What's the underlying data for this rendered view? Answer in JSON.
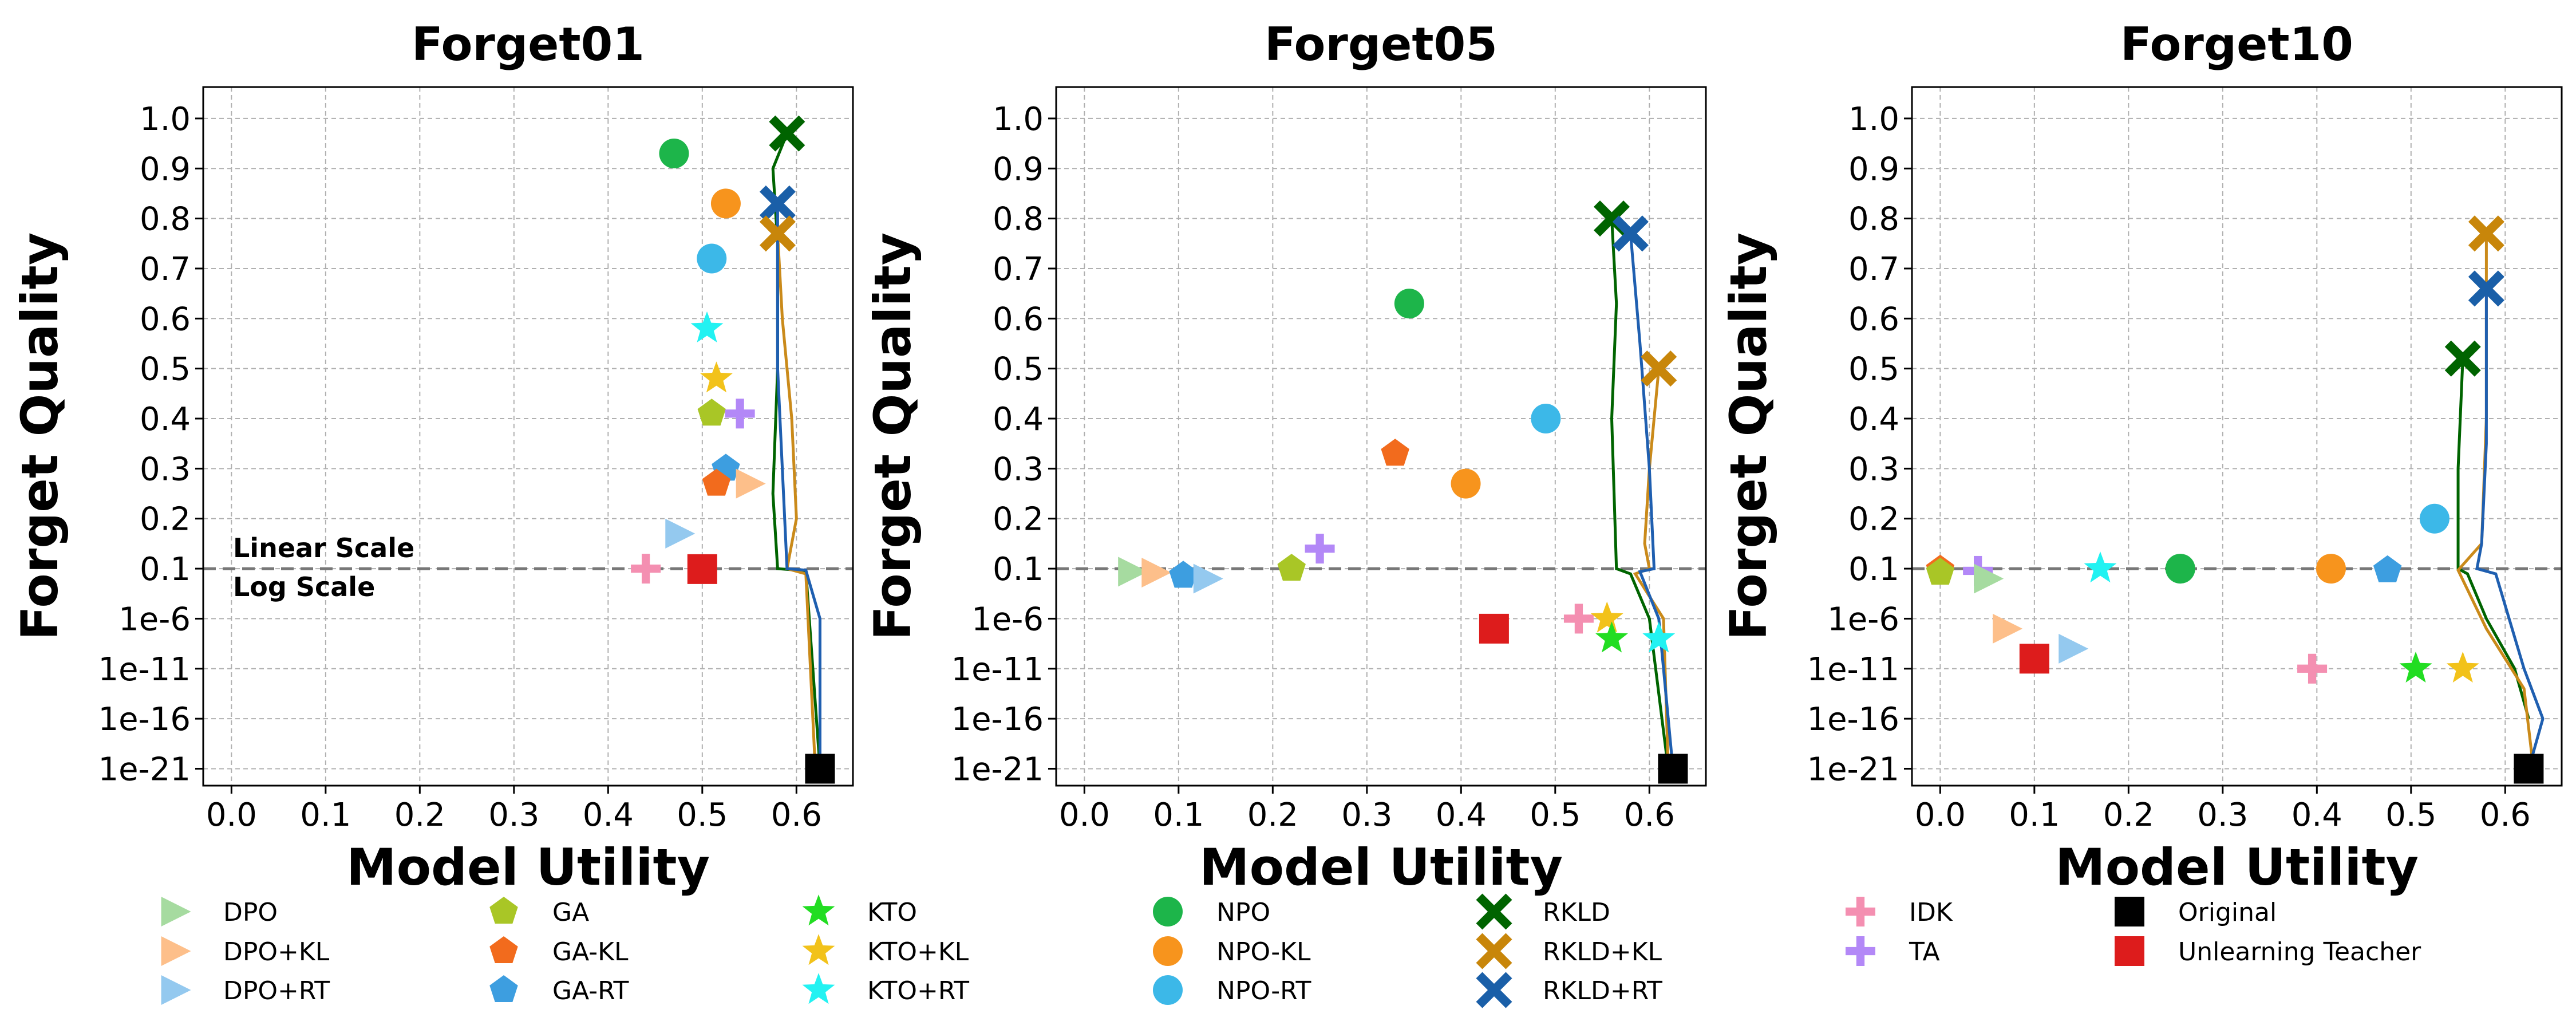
{
  "chart_data": [
    {
      "type": "scatter",
      "title": "Forget01",
      "xlabel": "Model Utility",
      "ylabel": "Forget Quality",
      "xlim": [
        -0.03,
        0.66
      ],
      "xticks": [
        "0.0",
        "0.1",
        "0.2",
        "0.3",
        "0.4",
        "0.5",
        "0.6"
      ],
      "yticks": [
        "1.0",
        "0.9",
        "0.8",
        "0.7",
        "0.6",
        "0.5",
        "0.4",
        "0.3",
        "0.2",
        "0.1",
        "1e-6",
        "1e-11",
        "1e-16",
        "1e-21"
      ],
      "y_scale": "linear above 0.1, log below 0.1",
      "scale_notes": {
        "upper": "Linear Scale",
        "lower": "Log Scale"
      },
      "grid": true,
      "points": [
        {
          "method": "NPO",
          "x": 0.47,
          "y": "0.93"
        },
        {
          "method": "NPO-KL",
          "x": 0.525,
          "y": "0.83"
        },
        {
          "method": "NPO-RT",
          "x": 0.51,
          "y": "0.72"
        },
        {
          "method": "KTO+RT",
          "x": 0.505,
          "y": "0.58"
        },
        {
          "method": "KTO+KL",
          "x": 0.515,
          "y": "0.48"
        },
        {
          "method": "GA",
          "x": 0.51,
          "y": "0.41"
        },
        {
          "method": "TA",
          "x": 0.54,
          "y": "0.41"
        },
        {
          "method": "GA-RT",
          "x": 0.525,
          "y": "0.30"
        },
        {
          "method": "GA-KL",
          "x": 0.515,
          "y": "0.27"
        },
        {
          "method": "DPO+KL",
          "x": 0.55,
          "y": "0.27"
        },
        {
          "method": "DPO+RT",
          "x": 0.475,
          "y": "0.17"
        },
        {
          "method": "IDK",
          "x": 0.44,
          "y": "0.10"
        },
        {
          "method": "Unlearning Teacher",
          "x": 0.5,
          "y": "0.09"
        },
        {
          "method": "RKLD",
          "x": 0.59,
          "y": "0.97"
        },
        {
          "method": "RKLD+RT",
          "x": 0.58,
          "y": "0.83"
        },
        {
          "method": "RKLD+KL",
          "x": 0.58,
          "y": "0.77"
        },
        {
          "method": "Original",
          "x": 0.625,
          "y": "1e-21"
        }
      ],
      "curves": [
        {
          "color": "#006400",
          "points": [
            [
              0.59,
              "0.97"
            ],
            [
              0.575,
              "0.90"
            ],
            [
              0.58,
              "0.75"
            ],
            [
              0.58,
              "0.50"
            ],
            [
              0.575,
              "0.25"
            ],
            [
              0.58,
              "0.10"
            ],
            [
              0.61,
              "0.06"
            ],
            [
              0.625,
              "1e-21"
            ]
          ]
        },
        {
          "color": "#ca8a1a",
          "points": [
            [
              0.58,
              "0.77"
            ],
            [
              0.585,
              "0.60"
            ],
            [
              0.595,
              "0.40"
            ],
            [
              0.6,
              "0.20"
            ],
            [
              0.59,
              "0.10"
            ],
            [
              0.61,
              "0.03"
            ],
            [
              0.62,
              "1e-21"
            ]
          ]
        },
        {
          "color": "#1f5fb0",
          "points": [
            [
              0.58,
              "0.83"
            ],
            [
              0.58,
              "0.50"
            ],
            [
              0.585,
              "0.30"
            ],
            [
              0.59,
              "0.10"
            ],
            [
              0.61,
              "0.07"
            ],
            [
              0.625,
              "1e-6"
            ],
            [
              0.625,
              "1e-21"
            ]
          ]
        }
      ]
    },
    {
      "type": "scatter",
      "title": "Forget05",
      "xlabel": "Model Utility",
      "ylabel": "Forget Quality",
      "xlim": [
        -0.03,
        0.66
      ],
      "xticks": [
        "0.0",
        "0.1",
        "0.2",
        "0.3",
        "0.4",
        "0.5",
        "0.6"
      ],
      "yticks": [
        "1.0",
        "0.9",
        "0.8",
        "0.7",
        "0.6",
        "0.5",
        "0.4",
        "0.3",
        "0.2",
        "0.1",
        "1e-6",
        "1e-11",
        "1e-16",
        "1e-21"
      ],
      "y_scale": "linear above 0.1, log below 0.1",
      "grid": true,
      "points": [
        {
          "method": "NPO",
          "x": 0.345,
          "y": "0.63"
        },
        {
          "method": "GA-KL",
          "x": 0.33,
          "y": "0.33"
        },
        {
          "method": "NPO-KL",
          "x": 0.405,
          "y": "0.27"
        },
        {
          "method": "NPO-RT",
          "x": 0.49,
          "y": "0.40"
        },
        {
          "method": "TA",
          "x": 0.25,
          "y": "0.14"
        },
        {
          "method": "GA",
          "x": 0.22,
          "y": "0.10"
        },
        {
          "method": "DPO",
          "x": 0.05,
          "y": "0.05"
        },
        {
          "method": "DPO+KL",
          "x": 0.075,
          "y": "0.04"
        },
        {
          "method": "GA-RT",
          "x": 0.105,
          "y": "0.02"
        },
        {
          "method": "DPO+RT",
          "x": 0.13,
          "y": "0.01"
        },
        {
          "method": "Unlearning Teacher",
          "x": 0.435,
          "y": "1e-7"
        },
        {
          "method": "IDK",
          "x": 0.525,
          "y": "1e-6"
        },
        {
          "method": "KTO+KL",
          "x": 0.555,
          "y": "1e-6"
        },
        {
          "method": "KTO",
          "x": 0.56,
          "y": "1e-8"
        },
        {
          "method": "KTO+RT",
          "x": 0.61,
          "y": "1e-8"
        },
        {
          "method": "RKLD",
          "x": 0.56,
          "y": "0.80"
        },
        {
          "method": "RKLD+RT",
          "x": 0.58,
          "y": "0.77"
        },
        {
          "method": "RKLD+KL",
          "x": 0.61,
          "y": "0.50"
        },
        {
          "method": "Original",
          "x": 0.625,
          "y": "1e-21"
        }
      ],
      "curves": [
        {
          "color": "#006400",
          "points": [
            [
              0.56,
              "0.80"
            ],
            [
              0.565,
              "0.63"
            ],
            [
              0.56,
              "0.40"
            ],
            [
              0.565,
              "0.10"
            ],
            [
              0.58,
              "0.03"
            ],
            [
              0.6,
              "1e-6"
            ],
            [
              0.62,
              "1e-21"
            ]
          ]
        },
        {
          "color": "#ca8a1a",
          "points": [
            [
              0.61,
              "0.50"
            ],
            [
              0.6,
              "0.30"
            ],
            [
              0.595,
              "0.15"
            ],
            [
              0.6,
              "0.10"
            ],
            [
              0.585,
              "0.03"
            ],
            [
              0.615,
              "1e-6"
            ],
            [
              0.62,
              "1e-21"
            ]
          ]
        },
        {
          "color": "#1f5fb0",
          "points": [
            [
              0.58,
              "0.77"
            ],
            [
              0.59,
              "0.55"
            ],
            [
              0.6,
              "0.30"
            ],
            [
              0.605,
              "0.10"
            ],
            [
              0.59,
              "0.05"
            ],
            [
              0.61,
              "1e-6"
            ],
            [
              0.625,
              "1e-21"
            ]
          ]
        }
      ]
    },
    {
      "type": "scatter",
      "title": "Forget10",
      "xlabel": "Model Utility",
      "ylabel": "Forget Quality",
      "xlim": [
        -0.03,
        0.66
      ],
      "xticks": [
        "0.0",
        "0.1",
        "0.2",
        "0.3",
        "0.4",
        "0.5",
        "0.6"
      ],
      "yticks": [
        "1.0",
        "0.9",
        "0.8",
        "0.7",
        "0.6",
        "0.5",
        "0.4",
        "0.3",
        "0.2",
        "0.1",
        "1e-6",
        "1e-11",
        "1e-16",
        "1e-21"
      ],
      "y_scale": "linear above 0.1, log below 0.1",
      "grid": true,
      "points": [
        {
          "method": "GA-KL",
          "x": 0.0,
          "y": "0.08"
        },
        {
          "method": "GA",
          "x": 0.0,
          "y": "0.04"
        },
        {
          "method": "TA",
          "x": 0.04,
          "y": "0.06"
        },
        {
          "method": "DPO",
          "x": 0.05,
          "y": "0.01"
        },
        {
          "method": "DPO+KL",
          "x": 0.07,
          "y": "1e-7"
        },
        {
          "method": "DPO+RT",
          "x": 0.14,
          "y": "1e-9"
        },
        {
          "method": "Unlearning Teacher",
          "x": 0.1,
          "y": "1e-10"
        },
        {
          "method": "KTO+RT",
          "x": 0.17,
          "y": "0.10"
        },
        {
          "method": "NPO",
          "x": 0.255,
          "y": "0.10"
        },
        {
          "method": "NPO-KL",
          "x": 0.415,
          "y": "0.10"
        },
        {
          "method": "GA-RT",
          "x": 0.475,
          "y": "0.07"
        },
        {
          "method": "NPO-RT",
          "x": 0.525,
          "y": "0.20"
        },
        {
          "method": "IDK",
          "x": 0.395,
          "y": "1e-11"
        },
        {
          "method": "KTO",
          "x": 0.505,
          "y": "1e-11"
        },
        {
          "method": "KTO+KL",
          "x": 0.555,
          "y": "1e-11"
        },
        {
          "method": "RKLD",
          "x": 0.555,
          "y": "0.52"
        },
        {
          "method": "RKLD+RT",
          "x": 0.58,
          "y": "0.66"
        },
        {
          "method": "RKLD+KL",
          "x": 0.58,
          "y": "0.77"
        },
        {
          "method": "Original",
          "x": 0.625,
          "y": "1e-21"
        }
      ],
      "curves": [
        {
          "color": "#006400",
          "points": [
            [
              0.555,
              "0.52"
            ],
            [
              0.55,
              "0.30"
            ],
            [
              0.55,
              "0.10"
            ],
            [
              0.56,
              "0.03"
            ],
            [
              0.58,
              "1e-6"
            ],
            [
              0.61,
              "1e-11"
            ],
            [
              0.625,
              "1e-16"
            ]
          ]
        },
        {
          "color": "#ca8a1a",
          "points": [
            [
              0.58,
              "0.77"
            ],
            [
              0.58,
              "0.40"
            ],
            [
              0.575,
              "0.15"
            ],
            [
              0.55,
              "0.07"
            ],
            [
              0.58,
              "1e-7"
            ],
            [
              0.62,
              "1e-13"
            ],
            [
              0.63,
              "1e-21"
            ]
          ]
        },
        {
          "color": "#1f5fb0",
          "points": [
            [
              0.58,
              "0.66"
            ],
            [
              0.58,
              "0.35"
            ],
            [
              0.575,
              "0.15"
            ],
            [
              0.57,
              "0.10"
            ],
            [
              0.59,
              "0.03"
            ],
            [
              0.62,
              "1e-11"
            ],
            [
              0.64,
              "1e-16"
            ],
            [
              0.625,
              "1e-21"
            ]
          ]
        }
      ]
    }
  ],
  "legend": {
    "columns": [
      [
        {
          "label": "DPO",
          "marker": "triangle",
          "color": "#a6dba0"
        },
        {
          "label": "DPO+KL",
          "marker": "triangle",
          "color": "#fdbf8a"
        },
        {
          "label": "DPO+RT",
          "marker": "triangle",
          "color": "#94c9ef"
        }
      ],
      [
        {
          "label": "GA",
          "marker": "pentagon",
          "color": "#a9c626"
        },
        {
          "label": "GA-KL",
          "marker": "pentagon",
          "color": "#f26b1d"
        },
        {
          "label": "GA-RT",
          "marker": "pentagon",
          "color": "#3d9ee0"
        }
      ],
      [
        {
          "label": "KTO",
          "marker": "star",
          "color": "#22dd22"
        },
        {
          "label": "KTO+KL",
          "marker": "star",
          "color": "#f2c21a"
        },
        {
          "label": "KTO+RT",
          "marker": "star",
          "color": "#22f2f2"
        }
      ],
      [
        {
          "label": "NPO",
          "marker": "circle",
          "color": "#1db54a"
        },
        {
          "label": "NPO-KL",
          "marker": "circle",
          "color": "#f7941d"
        },
        {
          "label": "NPO-RT",
          "marker": "circle",
          "color": "#3cb8e8"
        }
      ],
      [
        {
          "label": "RKLD",
          "marker": "x",
          "color": "#006400"
        },
        {
          "label": "RKLD+KL",
          "marker": "x",
          "color": "#c8860a"
        },
        {
          "label": "RKLD+RT",
          "marker": "x",
          "color": "#1a5fa8"
        }
      ],
      [
        {
          "label": "IDK",
          "marker": "plus",
          "color": "#f48fb1"
        },
        {
          "label": "TA",
          "marker": "plus",
          "color": "#b388f7"
        }
      ],
      [
        {
          "label": "Original",
          "marker": "square",
          "color": "#000000"
        },
        {
          "label": "Unlearning Teacher",
          "marker": "square",
          "color": "#dd1c1c"
        }
      ]
    ]
  }
}
